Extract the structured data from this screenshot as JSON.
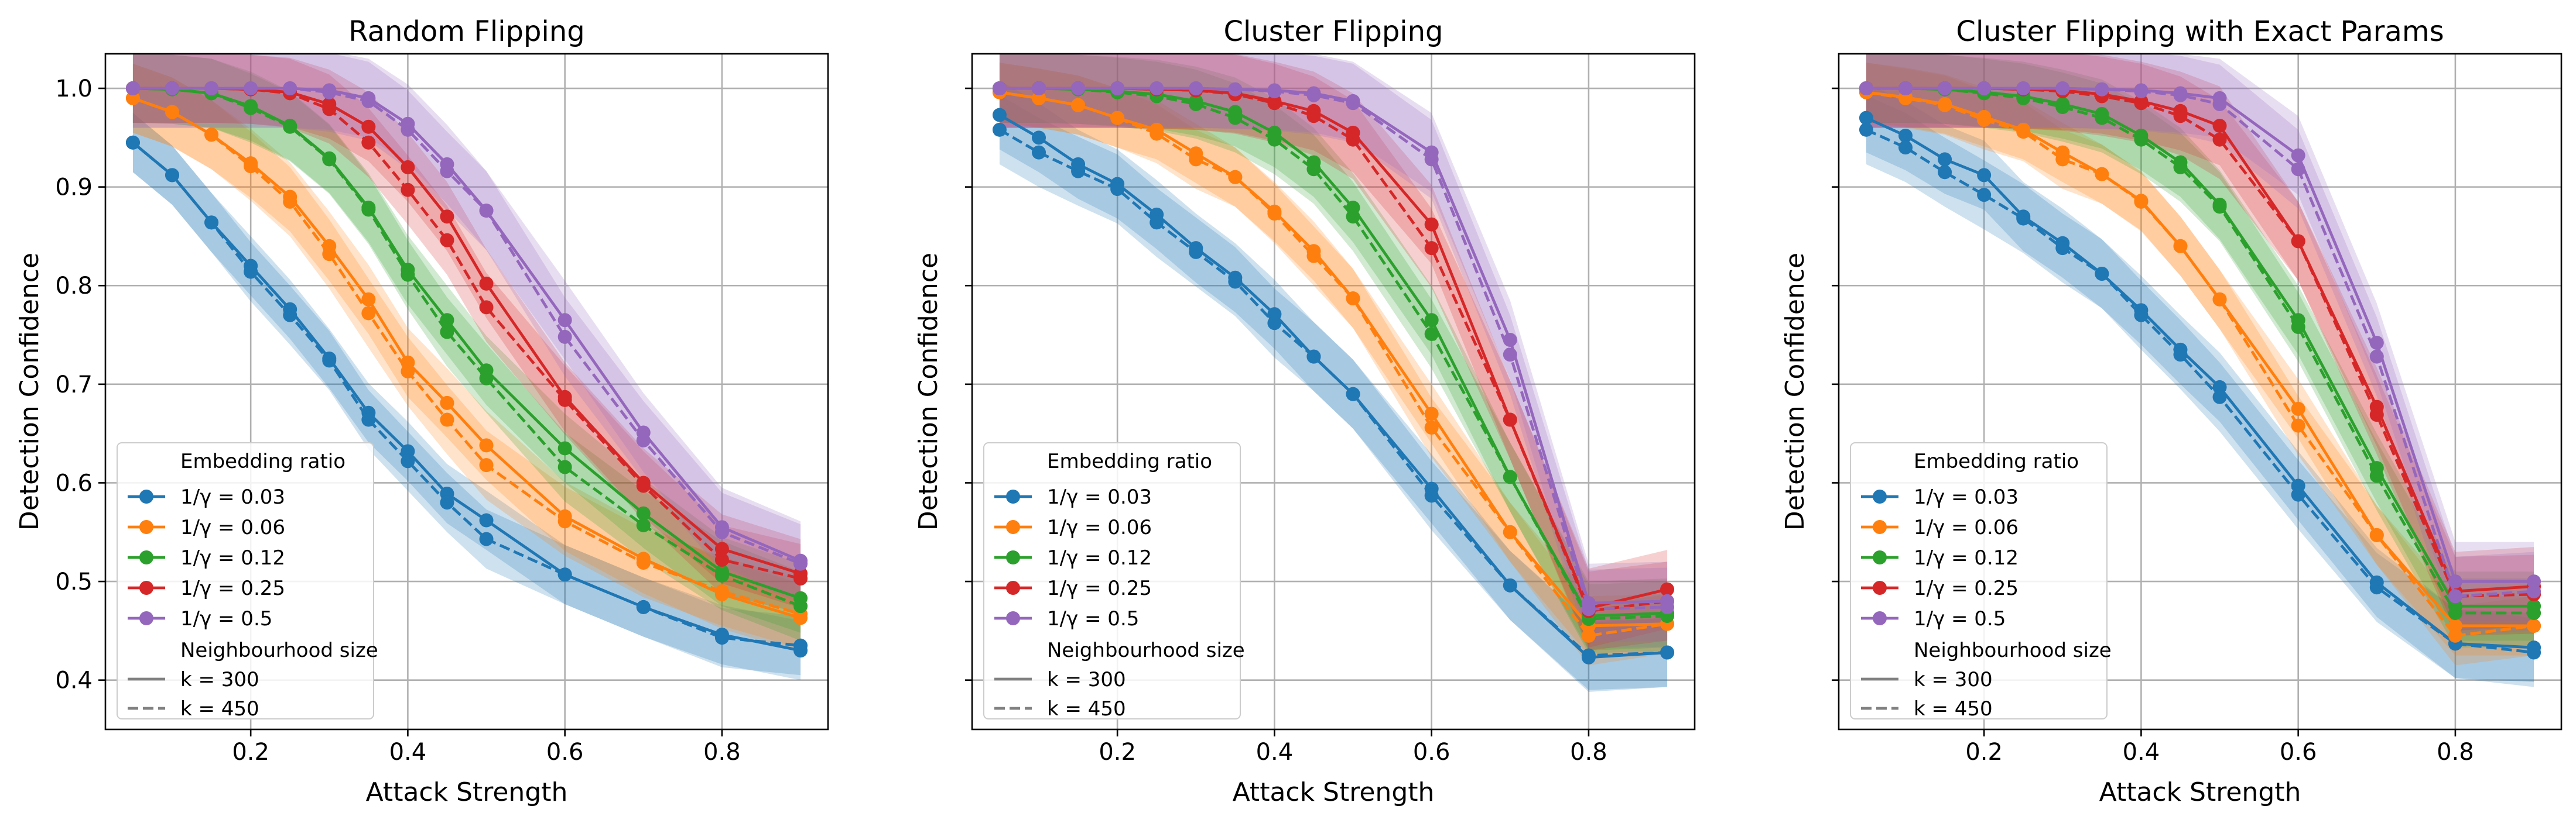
{
  "figure": {
    "background": "#ffffff",
    "colors": {
      "grid": "#b0b0b0",
      "axes": "#000000"
    }
  },
  "chart_data": [
    {
      "type": "line",
      "title": "Random Flipping",
      "xlabel": "Attack Strength",
      "ylabel": "Detection Confidence",
      "xlim": [
        0.015,
        0.935
      ],
      "ylim": [
        0.35,
        1.035
      ],
      "xticks": [
        0.2,
        0.4,
        0.6,
        0.8
      ],
      "xtick_labels": [
        "0.2",
        "0.4",
        "0.6",
        "0.8"
      ],
      "yticks": [
        0.4,
        0.5,
        0.6,
        0.7,
        0.8,
        0.9,
        1.0
      ],
      "ytick_labels": [
        "0.4",
        "0.5",
        "0.6",
        "0.7",
        "0.8",
        "0.9",
        "1.0"
      ],
      "show_ytick_labels": true,
      "grid": true,
      "legend_position": "lower-left",
      "x": [
        0.05,
        0.1,
        0.15,
        0.2,
        0.25,
        0.3,
        0.35,
        0.4,
        0.45,
        0.5,
        0.6,
        0.7,
        0.8,
        0.9
      ],
      "series": [
        {
          "name": "1/γ = 0.03",
          "color": "#1f77b4",
          "linestyle": "solid",
          "values": [
            0.945,
            0.912,
            0.864,
            0.82,
            0.776,
            0.726,
            0.671,
            0.632,
            0.589,
            0.562,
            0.507,
            0.474,
            0.446,
            0.43
          ],
          "band": 0.03
        },
        {
          "name": "1/γ = 0.03",
          "color": "#1f77b4",
          "linestyle": "dashed",
          "values": [
            0.945,
            0.912,
            0.864,
            0.814,
            0.77,
            0.724,
            0.664,
            0.622,
            0.58,
            0.543,
            0.507,
            0.474,
            0.443,
            0.435
          ],
          "band": 0.03
        },
        {
          "name": "1/γ = 0.06",
          "color": "#ff7f0e",
          "linestyle": "solid",
          "values": [
            0.99,
            0.976,
            0.953,
            0.924,
            0.89,
            0.84,
            0.786,
            0.722,
            0.681,
            0.638,
            0.566,
            0.523,
            0.487,
            0.463
          ],
          "band": 0.035
        },
        {
          "name": "1/γ = 0.06",
          "color": "#ff7f0e",
          "linestyle": "dashed",
          "values": [
            0.99,
            0.976,
            0.953,
            0.921,
            0.885,
            0.832,
            0.772,
            0.713,
            0.664,
            0.618,
            0.561,
            0.519,
            0.49,
            0.467
          ],
          "band": 0.035
        },
        {
          "name": "1/γ = 0.12",
          "color": "#2ca02c",
          "linestyle": "solid",
          "values": [
            1.0,
            0.999,
            0.995,
            0.982,
            0.962,
            0.929,
            0.879,
            0.816,
            0.765,
            0.714,
            0.635,
            0.569,
            0.51,
            0.483
          ],
          "band": 0.035
        },
        {
          "name": "1/γ = 0.12",
          "color": "#2ca02c",
          "linestyle": "dashed",
          "values": [
            1.0,
            0.999,
            0.995,
            0.98,
            0.961,
            0.928,
            0.877,
            0.811,
            0.753,
            0.706,
            0.616,
            0.557,
            0.506,
            0.475
          ],
          "band": 0.035
        },
        {
          "name": "1/γ = 0.25",
          "color": "#d62728",
          "linestyle": "solid",
          "values": [
            1.0,
            1.0,
            1.0,
            0.999,
            0.996,
            0.984,
            0.961,
            0.92,
            0.87,
            0.802,
            0.687,
            0.6,
            0.533,
            0.508
          ],
          "band": 0.035
        },
        {
          "name": "1/γ = 0.25",
          "color": "#d62728",
          "linestyle": "dashed",
          "values": [
            1.0,
            1.0,
            1.0,
            0.999,
            0.995,
            0.979,
            0.945,
            0.897,
            0.846,
            0.778,
            0.684,
            0.597,
            0.522,
            0.503
          ],
          "band": 0.035
        },
        {
          "name": "1/γ = 0.5",
          "color": "#9467bd",
          "linestyle": "solid",
          "values": [
            1.0,
            1.0,
            1.0,
            1.0,
            1.0,
            0.998,
            0.99,
            0.964,
            0.923,
            0.876,
            0.765,
            0.651,
            0.555,
            0.521
          ],
          "band": 0.04
        },
        {
          "name": "1/γ = 0.5",
          "color": "#9467bd",
          "linestyle": "dashed",
          "values": [
            1.0,
            1.0,
            1.0,
            1.0,
            1.0,
            0.996,
            0.987,
            0.958,
            0.916,
            0.876,
            0.748,
            0.643,
            0.55,
            0.518
          ],
          "band": 0.04
        }
      ]
    },
    {
      "type": "line",
      "title": "Cluster Flipping",
      "xlabel": "Attack Strength",
      "ylabel": "Detection Confidence",
      "xlim": [
        0.015,
        0.935
      ],
      "ylim": [
        0.35,
        1.035
      ],
      "xticks": [
        0.2,
        0.4,
        0.6,
        0.8
      ],
      "xtick_labels": [
        "0.2",
        "0.4",
        "0.6",
        "0.8"
      ],
      "yticks": [
        0.4,
        0.5,
        0.6,
        0.7,
        0.8,
        0.9,
        1.0
      ],
      "ytick_labels": [
        "0.4",
        "0.5",
        "0.6",
        "0.7",
        "0.8",
        "0.9",
        "1.0"
      ],
      "show_ytick_labels": false,
      "grid": true,
      "legend_position": "lower-left",
      "x": [
        0.05,
        0.1,
        0.15,
        0.2,
        0.25,
        0.3,
        0.35,
        0.4,
        0.45,
        0.5,
        0.6,
        0.7,
        0.8,
        0.9
      ],
      "series": [
        {
          "name": "1/γ = 0.03",
          "color": "#1f77b4",
          "linestyle": "solid",
          "values": [
            0.973,
            0.95,
            0.923,
            0.903,
            0.872,
            0.838,
            0.808,
            0.771,
            0.728,
            0.69,
            0.594,
            0.496,
            0.423,
            0.428
          ],
          "band": 0.035
        },
        {
          "name": "1/γ = 0.03",
          "color": "#1f77b4",
          "linestyle": "dashed",
          "values": [
            0.958,
            0.935,
            0.916,
            0.898,
            0.864,
            0.834,
            0.804,
            0.762,
            0.728,
            0.69,
            0.587,
            0.496,
            0.425,
            0.428
          ],
          "band": 0.035
        },
        {
          "name": "1/γ = 0.06",
          "color": "#ff7f0e",
          "linestyle": "solid",
          "values": [
            0.996,
            0.99,
            0.983,
            0.97,
            0.958,
            0.934,
            0.91,
            0.875,
            0.835,
            0.787,
            0.67,
            0.55,
            0.455,
            0.457
          ],
          "band": 0.03
        },
        {
          "name": "1/γ = 0.06",
          "color": "#ff7f0e",
          "linestyle": "dashed",
          "values": [
            0.996,
            0.99,
            0.983,
            0.97,
            0.954,
            0.928,
            0.91,
            0.873,
            0.83,
            0.787,
            0.656,
            0.55,
            0.445,
            0.457
          ],
          "band": 0.03
        },
        {
          "name": "1/γ = 0.12",
          "color": "#2ca02c",
          "linestyle": "solid",
          "values": [
            1.0,
            1.0,
            0.999,
            0.997,
            0.994,
            0.987,
            0.976,
            0.955,
            0.925,
            0.879,
            0.765,
            0.606,
            0.465,
            0.468
          ],
          "band": 0.035
        },
        {
          "name": "1/γ = 0.12",
          "color": "#2ca02c",
          "linestyle": "dashed",
          "values": [
            1.0,
            1.0,
            0.999,
            0.996,
            0.992,
            0.984,
            0.97,
            0.948,
            0.918,
            0.87,
            0.751,
            0.606,
            0.462,
            0.465
          ],
          "band": 0.035
        },
        {
          "name": "1/γ = 0.25",
          "color": "#d62728",
          "linestyle": "solid",
          "values": [
            1.0,
            1.0,
            1.0,
            1.0,
            0.999,
            0.998,
            0.995,
            0.987,
            0.977,
            0.955,
            0.862,
            0.664,
            0.473,
            0.492
          ],
          "band": 0.04
        },
        {
          "name": "1/γ = 0.25",
          "color": "#d62728",
          "linestyle": "dashed",
          "values": [
            1.0,
            1.0,
            1.0,
            1.0,
            0.999,
            0.998,
            0.994,
            0.985,
            0.972,
            0.948,
            0.838,
            0.664,
            0.47,
            0.48
          ],
          "band": 0.04
        },
        {
          "name": "1/γ = 0.5",
          "color": "#9467bd",
          "linestyle": "solid",
          "values": [
            1.0,
            1.0,
            1.0,
            1.0,
            1.0,
            1.0,
            0.999,
            0.998,
            0.995,
            0.987,
            0.935,
            0.745,
            0.478,
            0.48
          ],
          "band": 0.04
        },
        {
          "name": "1/γ = 0.5",
          "color": "#9467bd",
          "linestyle": "dashed",
          "values": [
            1.0,
            1.0,
            1.0,
            1.0,
            1.0,
            1.0,
            0.999,
            0.997,
            0.993,
            0.985,
            0.928,
            0.73,
            0.472,
            0.474
          ],
          "band": 0.04
        }
      ]
    },
    {
      "type": "line",
      "title": "Cluster Flipping with Exact Params",
      "xlabel": "Attack Strength",
      "ylabel": "Detection Confidence",
      "xlim": [
        0.015,
        0.935
      ],
      "ylim": [
        0.35,
        1.035
      ],
      "xticks": [
        0.2,
        0.4,
        0.6,
        0.8
      ],
      "xtick_labels": [
        "0.2",
        "0.4",
        "0.6",
        "0.8"
      ],
      "yticks": [
        0.4,
        0.5,
        0.6,
        0.7,
        0.8,
        0.9,
        1.0
      ],
      "ytick_labels": [
        "0.4",
        "0.5",
        "0.6",
        "0.7",
        "0.8",
        "0.9",
        "1.0"
      ],
      "show_ytick_labels": false,
      "grid": true,
      "legend_position": "lower-left",
      "x": [
        0.05,
        0.1,
        0.15,
        0.2,
        0.25,
        0.3,
        0.35,
        0.4,
        0.45,
        0.5,
        0.6,
        0.7,
        0.8,
        0.9
      ],
      "series": [
        {
          "name": "1/γ = 0.03",
          "color": "#1f77b4",
          "linestyle": "solid",
          "values": [
            0.97,
            0.952,
            0.928,
            0.912,
            0.87,
            0.843,
            0.812,
            0.775,
            0.735,
            0.697,
            0.597,
            0.499,
            0.437,
            0.433
          ],
          "band": 0.035
        },
        {
          "name": "1/γ = 0.03",
          "color": "#1f77b4",
          "linestyle": "dashed",
          "values": [
            0.958,
            0.94,
            0.915,
            0.892,
            0.868,
            0.838,
            0.812,
            0.77,
            0.73,
            0.687,
            0.588,
            0.494,
            0.437,
            0.428
          ],
          "band": 0.035
        },
        {
          "name": "1/γ = 0.06",
          "color": "#ff7f0e",
          "linestyle": "solid",
          "values": [
            0.996,
            0.991,
            0.984,
            0.971,
            0.958,
            0.935,
            0.913,
            0.886,
            0.84,
            0.786,
            0.675,
            0.547,
            0.455,
            0.455
          ],
          "band": 0.03
        },
        {
          "name": "1/γ = 0.06",
          "color": "#ff7f0e",
          "linestyle": "dashed",
          "values": [
            0.996,
            0.99,
            0.983,
            0.968,
            0.956,
            0.928,
            0.913,
            0.885,
            0.84,
            0.786,
            0.658,
            0.547,
            0.445,
            0.455
          ],
          "band": 0.03
        },
        {
          "name": "1/γ = 0.12",
          "color": "#2ca02c",
          "linestyle": "solid",
          "values": [
            1.0,
            1.0,
            0.999,
            0.996,
            0.992,
            0.984,
            0.974,
            0.952,
            0.925,
            0.882,
            0.765,
            0.615,
            0.475,
            0.475
          ],
          "band": 0.035
        },
        {
          "name": "1/γ = 0.12",
          "color": "#2ca02c",
          "linestyle": "dashed",
          "values": [
            1.0,
            1.0,
            0.999,
            0.995,
            0.99,
            0.981,
            0.97,
            0.948,
            0.92,
            0.88,
            0.758,
            0.607,
            0.468,
            0.468
          ],
          "band": 0.035
        },
        {
          "name": "1/γ = 0.25",
          "color": "#d62728",
          "linestyle": "solid",
          "values": [
            1.0,
            1.0,
            1.0,
            1.0,
            0.999,
            0.998,
            0.994,
            0.987,
            0.977,
            0.962,
            0.845,
            0.677,
            0.49,
            0.495
          ],
          "band": 0.04
        },
        {
          "name": "1/γ = 0.25",
          "color": "#d62728",
          "linestyle": "dashed",
          "values": [
            1.0,
            1.0,
            1.0,
            1.0,
            0.999,
            0.997,
            0.992,
            0.985,
            0.972,
            0.948,
            0.845,
            0.669,
            0.485,
            0.487
          ],
          "band": 0.04
        },
        {
          "name": "1/γ = 0.5",
          "color": "#9467bd",
          "linestyle": "solid",
          "values": [
            1.0,
            1.0,
            1.0,
            1.0,
            1.0,
            1.0,
            0.999,
            0.998,
            0.995,
            0.99,
            0.932,
            0.742,
            0.5,
            0.5
          ],
          "band": 0.04
        },
        {
          "name": "1/γ = 0.5",
          "color": "#9467bd",
          "linestyle": "dashed",
          "values": [
            1.0,
            1.0,
            1.0,
            1.0,
            1.0,
            1.0,
            0.999,
            0.997,
            0.993,
            0.984,
            0.918,
            0.728,
            0.485,
            0.49
          ],
          "band": 0.04
        }
      ]
    }
  ],
  "legend": {
    "title_embedding": "Embedding ratio",
    "title_neighbourhood": "Neighbourhood size",
    "embedding_entries": [
      {
        "label": "1/γ = 0.03",
        "color": "#1f77b4"
      },
      {
        "label": "1/γ = 0.06",
        "color": "#ff7f0e"
      },
      {
        "label": "1/γ = 0.12",
        "color": "#2ca02c"
      },
      {
        "label": "1/γ = 0.25",
        "color": "#d62728"
      },
      {
        "label": "1/γ = 0.5",
        "color": "#9467bd"
      }
    ],
    "neighbourhood_entries": [
      {
        "label": "k = 300",
        "linestyle": "solid",
        "color": "#808080"
      },
      {
        "label": "k = 450",
        "linestyle": "dashed",
        "color": "#808080"
      }
    ]
  }
}
